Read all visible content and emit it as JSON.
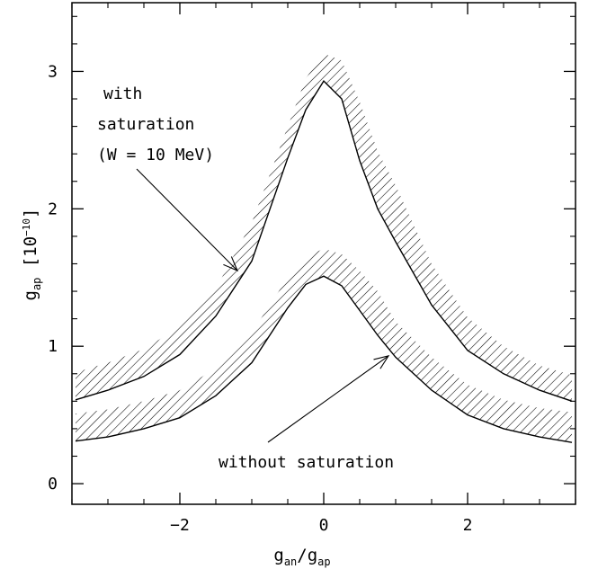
{
  "chart_data": {
    "type": "line",
    "xlabel": {
      "main": "g",
      "sub1": "an",
      "slash": "/g",
      "sub2": "ap"
    },
    "ylabel": {
      "main": "g",
      "sub": "ap",
      "unit_open": " [10",
      "unit_exp": "−10",
      "unit_close": "]"
    },
    "xlim": [
      -3.5,
      3.5
    ],
    "ylim": [
      -0.15,
      3.5
    ],
    "x_ticks": [
      {
        "value": -2,
        "label": "−2"
      },
      {
        "value": 0,
        "label": "0"
      },
      {
        "value": 2,
        "label": "2"
      }
    ],
    "y_ticks": [
      {
        "value": 0,
        "label": "0"
      },
      {
        "value": 1,
        "label": "1"
      },
      {
        "value": 2,
        "label": "2"
      },
      {
        "value": 3,
        "label": "3"
      }
    ],
    "series": [
      {
        "key": "with_saturation",
        "x": [
          -3.45,
          -3.0,
          -2.5,
          -2.0,
          -1.5,
          -1.0,
          -0.5,
          -0.25,
          0.0,
          0.25,
          0.5,
          0.75,
          1.0,
          1.5,
          2.0,
          2.5,
          3.0,
          3.45
        ],
        "lower": [
          0.61,
          0.68,
          0.78,
          0.94,
          1.22,
          1.62,
          2.37,
          2.72,
          2.93,
          2.8,
          2.35,
          2.0,
          1.76,
          1.3,
          0.97,
          0.8,
          0.68,
          0.6
        ],
        "upper": [
          0.81,
          0.88,
          0.98,
          1.14,
          1.42,
          1.9,
          2.6,
          2.95,
          3.13,
          3.08,
          2.78,
          2.42,
          2.17,
          1.6,
          1.21,
          1.0,
          0.86,
          0.79
        ]
      },
      {
        "key": "without_saturation",
        "x": [
          -3.45,
          -3.0,
          -2.5,
          -2.0,
          -1.5,
          -1.0,
          -0.5,
          -0.25,
          0.0,
          0.25,
          0.5,
          0.75,
          1.0,
          1.5,
          2.0,
          2.5,
          3.0,
          3.45
        ],
        "lower": [
          0.31,
          0.34,
          0.4,
          0.48,
          0.64,
          0.88,
          1.28,
          1.45,
          1.51,
          1.44,
          1.26,
          1.08,
          0.92,
          0.68,
          0.5,
          0.4,
          0.34,
          0.3
        ],
        "upper": [
          0.51,
          0.54,
          0.6,
          0.68,
          0.84,
          1.1,
          1.5,
          1.65,
          1.71,
          1.67,
          1.55,
          1.4,
          1.18,
          0.92,
          0.72,
          0.61,
          0.55,
          0.52
        ]
      }
    ],
    "annotations": [
      {
        "key": "with",
        "lines": [
          "with",
          "saturation",
          "(W = 10 MeV)"
        ],
        "arrow_to": [
          -1.2,
          1.55
        ]
      },
      {
        "key": "without",
        "lines": [
          "without saturation"
        ],
        "arrow_to": [
          0.9,
          0.93
        ]
      }
    ]
  }
}
